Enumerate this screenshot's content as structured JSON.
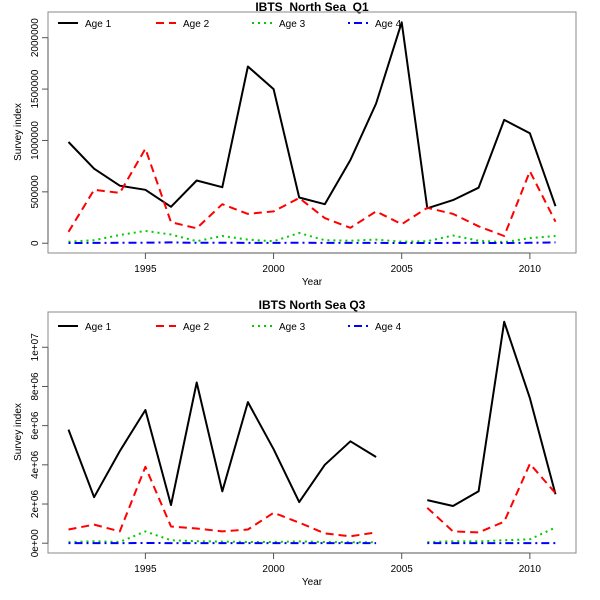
{
  "chart_data": [
    {
      "type": "line",
      "title": "IBTS_North Sea_Q1",
      "xlabel": "Year",
      "ylabel": "Survey index",
      "x": [
        1992,
        1993,
        1994,
        1995,
        1996,
        1997,
        1998,
        1999,
        2000,
        2001,
        2002,
        2003,
        2004,
        2005,
        2006,
        2007,
        2008,
        2009,
        2010,
        2011
      ],
      "xlim": [
        1991.2,
        2011.8
      ],
      "ylim": [
        -95000,
        2250000
      ],
      "xticks": [
        1995,
        2000,
        2005,
        2010
      ],
      "xtick_labels": [
        "1995",
        "2000",
        "2005",
        "2010"
      ],
      "yticks": [
        0,
        500000,
        1000000,
        1500000,
        2000000
      ],
      "ytick_labels": [
        "0",
        "500000",
        "1000000",
        "1500000",
        "2000000"
      ],
      "grid": false,
      "legend_position": "top-left",
      "series": [
        {
          "name": "Age 1",
          "color": "#000000",
          "dash": "solid",
          "values": [
            985000,
            725000,
            560000,
            520000,
            355000,
            610000,
            545000,
            1720000,
            1500000,
            445000,
            380000,
            810000,
            1360000,
            2150000,
            340000,
            420000,
            540000,
            1200000,
            1070000,
            360000
          ]
        },
        {
          "name": "Age 2",
          "color": "#ff0000",
          "dash": "dashed",
          "values": [
            110000,
            520000,
            490000,
            920000,
            205000,
            145000,
            380000,
            285000,
            310000,
            440000,
            245000,
            150000,
            310000,
            185000,
            345000,
            285000,
            165000,
            70000,
            700000,
            210000
          ]
        },
        {
          "name": "Age 3",
          "color": "#00cc00",
          "dash": "dotted",
          "values": [
            15000,
            30000,
            80000,
            120000,
            85000,
            20000,
            70000,
            35000,
            20000,
            100000,
            30000,
            25000,
            35000,
            15000,
            20000,
            75000,
            25000,
            10000,
            50000,
            70000
          ]
        },
        {
          "name": "Age 4",
          "color": "#0000ff",
          "dash": "dotdash",
          "values": [
            2000,
            3000,
            4000,
            5000,
            8000,
            4000,
            5000,
            3000,
            3000,
            5000,
            3000,
            3000,
            3000,
            2000,
            2000,
            3000,
            3000,
            2000,
            4000,
            8000
          ]
        }
      ]
    },
    {
      "type": "line",
      "title": "IBTS North Sea Q3",
      "xlabel": "Year",
      "ylabel": "Survey index",
      "x": [
        1992,
        1993,
        1994,
        1995,
        1996,
        1997,
        1998,
        1999,
        2000,
        2001,
        2002,
        2003,
        2004,
        2005,
        2006,
        2007,
        2008,
        2009,
        2010,
        2011
      ],
      "xlim": [
        1991.2,
        2011.8
      ],
      "ylim": [
        -500000,
        11800000
      ],
      "xticks": [
        1995,
        2000,
        2005,
        2010
      ],
      "xtick_labels": [
        "1995",
        "2000",
        "2005",
        "2010"
      ],
      "yticks": [
        0,
        2000000,
        4000000,
        6000000,
        8000000,
        10000000
      ],
      "ytick_labels": [
        "0e+00",
        "2e+06",
        "4e+06",
        "6e+06",
        "8e+06",
        "1e+07"
      ],
      "grid": false,
      "legend_position": "top-left",
      "series": [
        {
          "name": "Age 1",
          "color": "#000000",
          "dash": "solid",
          "values": [
            5800000,
            2350000,
            4700000,
            6800000,
            1950000,
            8200000,
            2650000,
            7200000,
            4800000,
            2100000,
            4000000,
            5200000,
            4400000,
            null,
            2200000,
            1900000,
            2650000,
            11300000,
            7400000,
            2500000
          ]
        },
        {
          "name": "Age 2",
          "color": "#ff0000",
          "dash": "dashed",
          "values": [
            700000,
            950000,
            600000,
            3900000,
            850000,
            750000,
            600000,
            700000,
            1550000,
            1050000,
            500000,
            350000,
            550000,
            null,
            1800000,
            600000,
            550000,
            1100000,
            4050000,
            2550000
          ]
        },
        {
          "name": "Age 3",
          "color": "#00cc00",
          "dash": "dotted",
          "values": [
            50000,
            100000,
            60000,
            600000,
            150000,
            100000,
            80000,
            60000,
            60000,
            90000,
            60000,
            50000,
            50000,
            null,
            50000,
            100000,
            90000,
            150000,
            200000,
            800000
          ]
        },
        {
          "name": "Age 4",
          "color": "#0000ff",
          "dash": "dotdash",
          "values": [
            5000,
            5000,
            5000,
            10000,
            5000,
            5000,
            5000,
            5000,
            5000,
            5000,
            5000,
            5000,
            5000,
            null,
            5000,
            5000,
            5000,
            5000,
            5000,
            5000
          ]
        }
      ]
    }
  ]
}
